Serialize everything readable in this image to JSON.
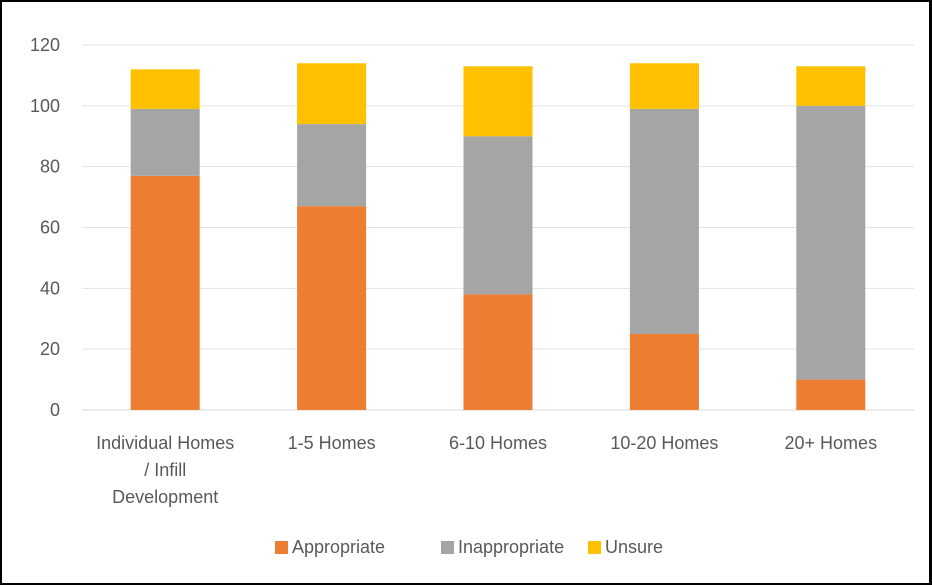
{
  "chart_data": {
    "type": "bar",
    "stacked": true,
    "title": "",
    "xlabel": "",
    "ylabel": "",
    "ylim": [
      0,
      120
    ],
    "yticks": [
      0,
      20,
      40,
      60,
      80,
      100,
      120
    ],
    "grid": true,
    "legend_position": "bottom",
    "categories": [
      [
        "Individual Homes",
        "/ Infill",
        "Development"
      ],
      [
        "1-5 Homes"
      ],
      [
        "6-10 Homes"
      ],
      [
        "10-20 Homes"
      ],
      [
        "20+ Homes"
      ]
    ],
    "series": [
      {
        "name": "Appropriate",
        "color": "#ED7D31",
        "values": [
          77,
          67,
          38,
          25,
          10
        ]
      },
      {
        "name": "Inappropriate",
        "color": "#A5A5A5",
        "values": [
          22,
          27,
          52,
          74,
          90
        ]
      },
      {
        "name": "Unsure",
        "color": "#FFC000",
        "values": [
          13,
          20,
          23,
          15,
          13
        ]
      }
    ]
  }
}
